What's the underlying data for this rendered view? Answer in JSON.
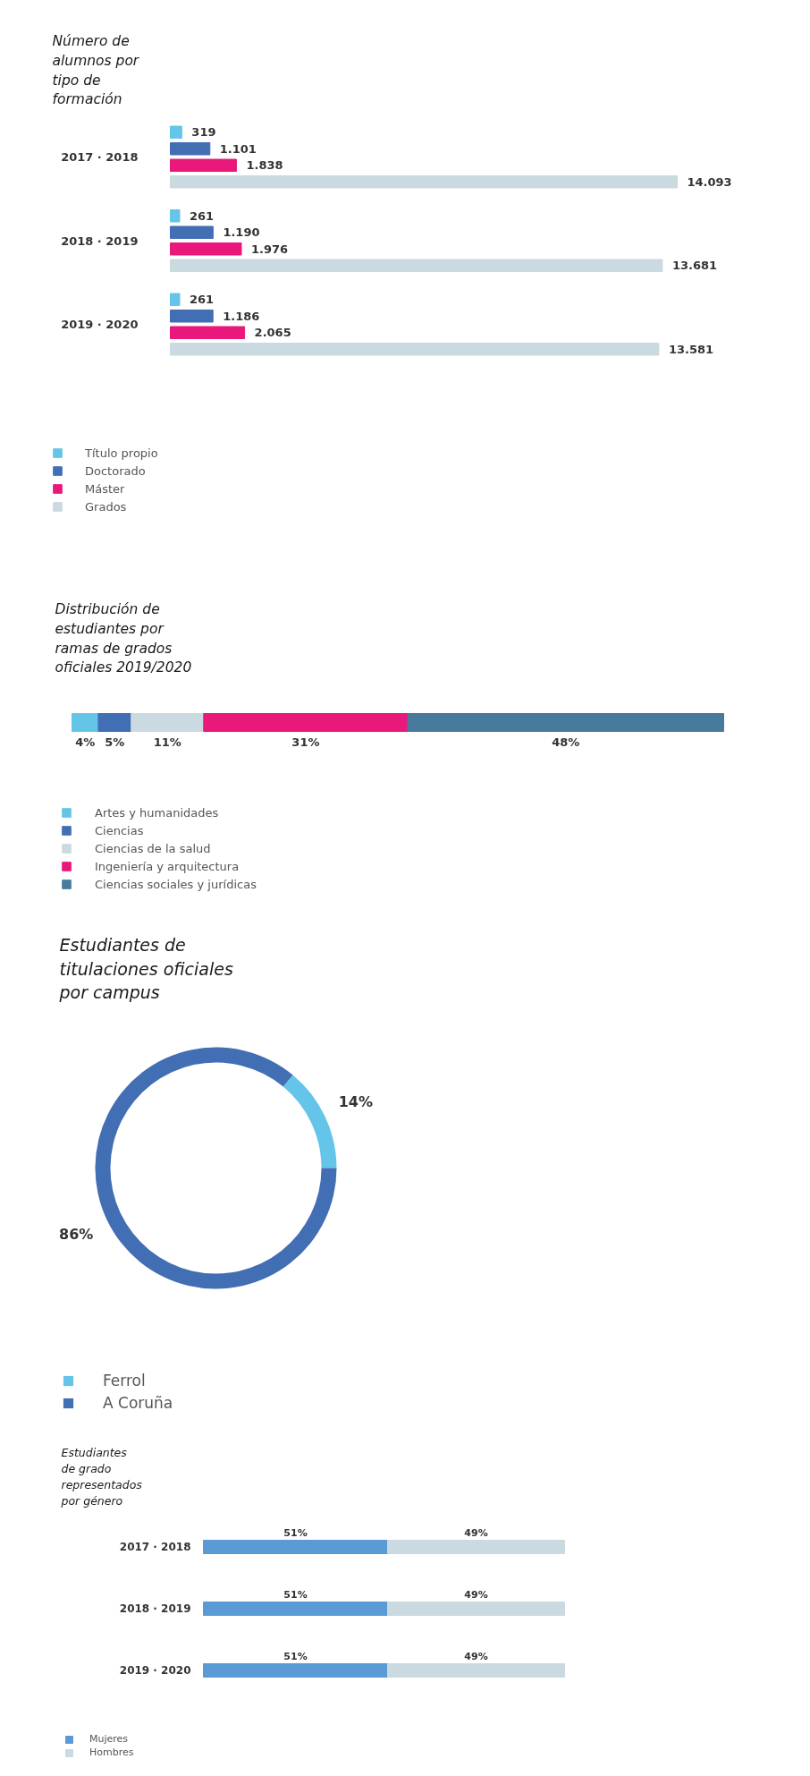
{
  "chart_data": [
    {
      "type": "bar",
      "orientation": "horizontal",
      "title": "Número de alumnos por tipo de formación",
      "categories": [
        "2017 · 2018",
        "2018 · 2019",
        "2019 · 2020"
      ],
      "series": [
        {
          "name": "Título propio",
          "color": "#65c5e8",
          "values": [
            319,
            261,
            261
          ],
          "value_labels": [
            "319",
            "261",
            "261"
          ]
        },
        {
          "name": "Doctorado",
          "color": "#426eb4",
          "values": [
            1101,
            1190,
            1186
          ],
          "value_labels": [
            "1.101",
            "1.190",
            "1.186"
          ]
        },
        {
          "name": "Máster",
          "color": "#e8197a",
          "values": [
            1838,
            1976,
            2065
          ],
          "value_labels": [
            "1.838",
            "1.976",
            "2.065"
          ]
        },
        {
          "name": "Grados",
          "color": "#cbdae0",
          "values": [
            14093,
            13681,
            13581
          ],
          "value_labels": [
            "14.093",
            "13.681",
            "13.581"
          ]
        }
      ],
      "legend": "bottom left"
    },
    {
      "type": "bar",
      "orientation": "horizontal",
      "stacked": true,
      "title": "Distribución de estudiantes por ramas de grados oficiales 2019/2020",
      "categories": [
        null
      ],
      "series": [
        {
          "name": "Artes y humanidades",
          "color": "#65c5e8",
          "values": [
            4
          ],
          "value_labels": [
            "4%"
          ]
        },
        {
          "name": "Ciencias",
          "color": "#426eb4",
          "values": [
            5
          ],
          "value_labels": [
            "5%"
          ]
        },
        {
          "name": "Ciencias de la salud",
          "color": "#cbdae0",
          "values": [
            11
          ],
          "value_labels": [
            "11%"
          ]
        },
        {
          "name": "Ingeniería y arquitectura",
          "color": "#e8197a",
          "values": [
            31
          ],
          "value_labels": [
            "31%"
          ]
        },
        {
          "name": "Ciencias sociales y jurídicas",
          "color": "#487a9b",
          "values": [
            48
          ],
          "value_labels": [
            "48%"
          ]
        }
      ],
      "legend": "bottom left"
    },
    {
      "type": "donut",
      "title": "Estudiantes de titulaciones oficiales por campus",
      "categories": [
        "Ferrol",
        "A Coruña"
      ],
      "values": [
        14,
        86
      ],
      "colors": [
        "#65c5e8",
        "#426eb4"
      ],
      "value_labels": [
        "14%",
        "86%"
      ],
      "legend": "bottom left"
    },
    {
      "type": "bar",
      "orientation": "horizontal",
      "stacked": true,
      "title": "Estudiantes de grado representados por género",
      "categories": [
        "2017 · 2018",
        "2018 · 2019",
        "2019 · 2020"
      ],
      "series": [
        {
          "name": "Mujeres",
          "color": "#5b9bd5",
          "values": [
            51,
            51,
            51
          ],
          "value_labels": [
            "51%",
            "51%",
            "51%"
          ]
        },
        {
          "name": "Hombres",
          "color": "#cbdae0",
          "values": [
            49,
            49,
            49
          ],
          "value_labels": [
            "49%",
            "49%",
            "49%"
          ]
        }
      ],
      "legend": "bottom left"
    }
  ]
}
